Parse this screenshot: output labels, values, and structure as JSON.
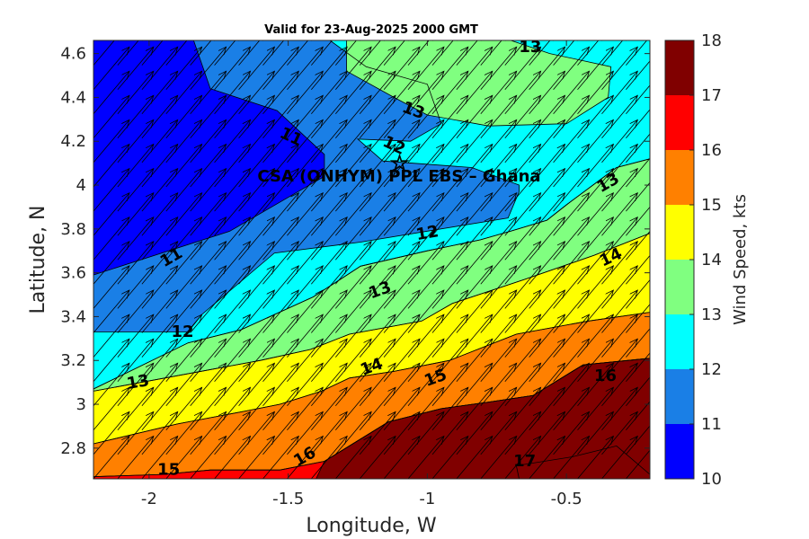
{
  "chart_data": {
    "type": "contour",
    "title": "Valid for 23-Aug-2025 2000 GMT",
    "xlabel": "Longitude, W",
    "ylabel": "Latitude, N",
    "xlim": [
      -2.2,
      -0.2
    ],
    "ylim": [
      2.66,
      4.66
    ],
    "xticks": [
      -2,
      -1.5,
      -1,
      -0.5
    ],
    "xtick_labels": [
      "-2",
      "-1.5",
      "-1",
      "-0.5"
    ],
    "yticks": [
      2.8,
      3,
      3.2,
      3.4,
      3.6,
      3.8,
      4,
      4.2,
      4.4,
      4.6
    ],
    "ytick_labels": [
      "2.8",
      "3",
      "3.2",
      "3.4",
      "3.6",
      "3.8",
      "4",
      "4.2",
      "4.4",
      "4.6"
    ],
    "colorbar": {
      "label": "Wind Speed, kts",
      "levels": [
        10,
        11,
        12,
        13,
        14,
        15,
        16,
        17,
        18
      ],
      "level_labels": [
        "10",
        "11",
        "12",
        "13",
        "14",
        "15",
        "16",
        "17",
        "18"
      ],
      "colors": [
        "#0000ff",
        "#1a7fe6",
        "#00ffff",
        "#80ff80",
        "#ffff00",
        "#ff8000",
        "#ff0000",
        "#800000"
      ]
    },
    "site": {
      "label": "CSA (ONHYM) PPL EBS  – Ghana",
      "lon": -1.1,
      "lat": 4.1
    },
    "wind_direction_deg_from": 220,
    "bands": [
      {
        "level": 10,
        "polygon": [
          [
            -2.2,
            4.66
          ],
          [
            -1.84,
            4.66
          ],
          [
            -1.78,
            4.44
          ],
          [
            -1.54,
            4.34
          ],
          [
            -1.37,
            4.14
          ],
          [
            -1.37,
            4.04
          ],
          [
            -1.71,
            3.79
          ],
          [
            -2.2,
            3.59
          ]
        ]
      },
      {
        "level": 11,
        "polygon": [
          [
            -2.2,
            4.66
          ],
          [
            -1.35,
            4.66
          ],
          [
            -1.22,
            4.54
          ],
          [
            -1.0,
            4.46
          ],
          [
            -0.95,
            4.28
          ],
          [
            -1.06,
            4.2
          ],
          [
            -1.25,
            4.21
          ],
          [
            -1.16,
            4.11
          ],
          [
            -0.84,
            4.08
          ],
          [
            -0.67,
            4.0
          ],
          [
            -0.67,
            3.97
          ],
          [
            -0.71,
            3.85
          ],
          [
            -1.0,
            3.79
          ],
          [
            -1.24,
            3.74
          ],
          [
            -1.55,
            3.69
          ],
          [
            -1.81,
            3.41
          ],
          [
            -1.86,
            3.33
          ],
          [
            -2.2,
            3.33
          ]
        ]
      },
      {
        "level": 12,
        "polygon": [
          [
            -2.2,
            4.66
          ],
          [
            -0.2,
            4.66
          ],
          [
            -0.2,
            4.12
          ],
          [
            -0.32,
            4.08
          ],
          [
            -0.5,
            3.91
          ],
          [
            -0.57,
            3.84
          ],
          [
            -0.7,
            3.79
          ],
          [
            -0.81,
            3.75
          ],
          [
            -1.0,
            3.7
          ],
          [
            -1.24,
            3.63
          ],
          [
            -1.41,
            3.49
          ],
          [
            -1.67,
            3.34
          ],
          [
            -1.86,
            3.28
          ],
          [
            -2.2,
            3.07
          ]
        ]
      },
      {
        "level": 13,
        "polygon": [
          [
            -2.2,
            3.07
          ],
          [
            -1.86,
            3.28
          ],
          [
            -1.67,
            3.34
          ],
          [
            -1.41,
            3.49
          ],
          [
            -1.24,
            3.63
          ],
          [
            -1.0,
            3.7
          ],
          [
            -0.81,
            3.75
          ],
          [
            -0.7,
            3.79
          ],
          [
            -0.57,
            3.84
          ],
          [
            -0.5,
            3.91
          ],
          [
            -0.32,
            4.08
          ],
          [
            -0.2,
            4.12
          ],
          [
            -0.2,
            3.78
          ],
          [
            -0.4,
            3.68
          ],
          [
            -0.65,
            3.57
          ],
          [
            -0.91,
            3.46
          ],
          [
            -1.02,
            3.38
          ],
          [
            -1.28,
            3.32
          ],
          [
            -1.42,
            3.25
          ],
          [
            -1.6,
            3.2
          ],
          [
            -2.2,
            3.06
          ]
        ]
      },
      {
        "level": 13,
        "polygon": [
          [
            -1.29,
            4.66
          ],
          [
            -0.7,
            4.66
          ],
          [
            -0.56,
            4.6
          ],
          [
            -0.34,
            4.54
          ],
          [
            -0.35,
            4.4
          ],
          [
            -0.5,
            4.28
          ],
          [
            -0.78,
            4.27
          ],
          [
            -1.0,
            4.32
          ],
          [
            -1.12,
            4.4
          ],
          [
            -1.29,
            4.52
          ]
        ]
      },
      {
        "level": 14,
        "polygon": [
          [
            -2.2,
            3.06
          ],
          [
            -1.6,
            3.2
          ],
          [
            -1.42,
            3.25
          ],
          [
            -1.28,
            3.32
          ],
          [
            -1.02,
            3.38
          ],
          [
            -0.91,
            3.46
          ],
          [
            -0.65,
            3.57
          ],
          [
            -0.4,
            3.68
          ],
          [
            -0.2,
            3.78
          ],
          [
            -0.2,
            3.42
          ],
          [
            -0.42,
            3.38
          ],
          [
            -0.68,
            3.32
          ],
          [
            -0.92,
            3.2
          ],
          [
            -1.12,
            3.15
          ],
          [
            -1.28,
            3.12
          ],
          [
            -1.38,
            3.06
          ],
          [
            -1.53,
            3.0
          ],
          [
            -1.65,
            2.97
          ],
          [
            -1.9,
            2.91
          ],
          [
            -2.2,
            2.82
          ]
        ]
      },
      {
        "level": 15,
        "polygon": [
          [
            -2.2,
            2.82
          ],
          [
            -1.9,
            2.91
          ],
          [
            -1.65,
            2.97
          ],
          [
            -1.53,
            3.0
          ],
          [
            -1.38,
            3.06
          ],
          [
            -1.28,
            3.12
          ],
          [
            -1.12,
            3.15
          ],
          [
            -0.92,
            3.2
          ],
          [
            -0.68,
            3.32
          ],
          [
            -0.42,
            3.38
          ],
          [
            -0.2,
            3.42
          ],
          [
            -0.2,
            3.21
          ],
          [
            -0.44,
            3.18
          ],
          [
            -0.62,
            3.04
          ],
          [
            -0.78,
            3.01
          ],
          [
            -0.95,
            2.98
          ],
          [
            -1.14,
            2.92
          ],
          [
            -1.37,
            2.74
          ],
          [
            -1.53,
            2.7
          ],
          [
            -1.78,
            2.7
          ],
          [
            -1.95,
            2.68
          ],
          [
            -2.2,
            2.67
          ]
        ]
      },
      {
        "level": 16,
        "polygon": [
          [
            -2.2,
            2.67
          ],
          [
            -1.95,
            2.68
          ],
          [
            -1.78,
            2.7
          ],
          [
            -1.53,
            2.7
          ],
          [
            -1.37,
            2.74
          ],
          [
            -1.14,
            2.92
          ],
          [
            -0.95,
            2.98
          ],
          [
            -0.78,
            3.01
          ],
          [
            -0.62,
            3.04
          ],
          [
            -0.44,
            3.18
          ],
          [
            -0.2,
            3.21
          ],
          [
            -0.2,
            2.66
          ],
          [
            -2.2,
            2.66
          ]
        ]
      },
      {
        "level": 17,
        "polygon": [
          [
            -0.2,
            2.66
          ],
          [
            -0.2,
            3.21
          ],
          [
            -0.44,
            3.18
          ],
          [
            -0.62,
            3.04
          ],
          [
            -0.78,
            3.01
          ],
          [
            -0.95,
            2.98
          ],
          [
            -1.14,
            2.92
          ],
          [
            -1.37,
            2.74
          ],
          [
            -1.4,
            2.66
          ]
        ]
      },
      {
        "level": 17,
        "polygon": [
          [
            -0.67,
            2.66
          ],
          [
            -0.2,
            2.66
          ],
          [
            -0.2,
            2.68
          ],
          [
            -0.32,
            2.81
          ],
          [
            -0.48,
            2.76
          ],
          [
            -0.68,
            2.72
          ]
        ]
      }
    ],
    "contour_labels": [
      {
        "text": "11",
        "lon": -1.49,
        "lat": 4.22,
        "rotate": 25
      },
      {
        "text": "11",
        "lon": -1.92,
        "lat": 3.67,
        "rotate": -30
      },
      {
        "text": "12",
        "lon": -1.12,
        "lat": 4.18,
        "rotate": 25
      },
      {
        "text": "12",
        "lon": -1.0,
        "lat": 3.78,
        "rotate": -10
      },
      {
        "text": "12",
        "lon": -1.88,
        "lat": 3.33,
        "rotate": 0
      },
      {
        "text": "13",
        "lon": -0.63,
        "lat": 4.63,
        "rotate": 0
      },
      {
        "text": "13",
        "lon": -1.05,
        "lat": 4.34,
        "rotate": 20
      },
      {
        "text": "13",
        "lon": -0.35,
        "lat": 4.01,
        "rotate": -30
      },
      {
        "text": "13",
        "lon": -1.17,
        "lat": 3.52,
        "rotate": -20
      },
      {
        "text": "13",
        "lon": -2.04,
        "lat": 3.1,
        "rotate": -10
      },
      {
        "text": "14",
        "lon": -0.34,
        "lat": 3.67,
        "rotate": -25
      },
      {
        "text": "14",
        "lon": -1.2,
        "lat": 3.17,
        "rotate": -20
      },
      {
        "text": "15",
        "lon": -0.97,
        "lat": 3.12,
        "rotate": -20
      },
      {
        "text": "15",
        "lon": -1.93,
        "lat": 2.7,
        "rotate": 0
      },
      {
        "text": "16",
        "lon": -0.36,
        "lat": 3.13,
        "rotate": 0
      },
      {
        "text": "16",
        "lon": -1.44,
        "lat": 2.76,
        "rotate": -30
      },
      {
        "text": "17",
        "lon": -0.65,
        "lat": 2.74,
        "rotate": 0
      }
    ]
  }
}
